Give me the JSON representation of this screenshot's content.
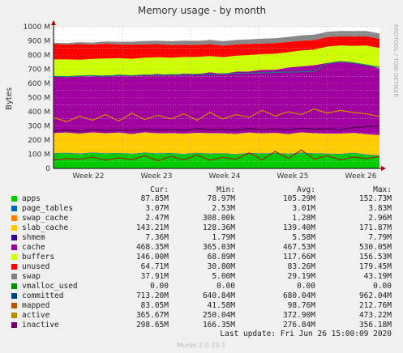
{
  "chart_data": {
    "type": "area",
    "title": "Memory usage - by month",
    "ylabel": "Bytes",
    "watermark": "RRDTOOL / TOBI OETIKER",
    "ylim": [
      0,
      1000
    ],
    "yticks": [
      "0",
      "100 M",
      "200 M",
      "300 M",
      "400 M",
      "500 M",
      "600 M",
      "700 M",
      "800 M",
      "900 M",
      "1000 M"
    ],
    "xticks": [
      "Week 22",
      "Week 23",
      "Week 24",
      "Week 25",
      "Week 26"
    ],
    "grid": true,
    "stack_order": [
      "apps",
      "page_tables",
      "swap_cache",
      "slab_cache",
      "cache",
      "buffers",
      "unused",
      "swap"
    ],
    "stacked_series": [
      {
        "name": "apps",
        "color": "#00cc00",
        "values": [
          105,
          108,
          102,
          110,
          104,
          107,
          101,
          109,
          103,
          106,
          100,
          108,
          102,
          105,
          99,
          107,
          103,
          106,
          101,
          109,
          104,
          102,
          100,
          108,
          95,
          88
        ]
      },
      {
        "name": "page_tables",
        "color": "#0066b3",
        "values": [
          3,
          3,
          3,
          3,
          3,
          3,
          3,
          3,
          3,
          3,
          3,
          3,
          3,
          3,
          3,
          3,
          3,
          3,
          3,
          3,
          3,
          3,
          3,
          3,
          3,
          3
        ]
      },
      {
        "name": "swap_cache",
        "color": "#ff8000",
        "values": [
          1,
          1,
          1,
          1,
          1,
          1,
          1,
          1,
          1,
          1,
          1,
          1,
          1,
          1,
          1,
          1,
          1,
          1,
          1,
          1,
          1,
          1,
          1,
          1,
          2,
          2
        ]
      },
      {
        "name": "slab_cache",
        "color": "#ffcc00",
        "values": [
          140,
          142,
          138,
          141,
          139,
          143,
          137,
          142,
          140,
          138,
          141,
          139,
          142,
          138,
          140,
          143,
          139,
          141,
          137,
          142,
          140,
          139,
          141,
          138,
          142,
          143
        ]
      },
      {
        "name": "cache",
        "color": "#a000a0",
        "values": [
          400,
          390,
          405,
          395,
          410,
          400,
          415,
          405,
          420,
          410,
          425,
          415,
          430,
          420,
          440,
          430,
          450,
          445,
          470,
          465,
          480,
          500,
          505,
          495,
          490,
          468
        ]
      },
      {
        "name": "buffers",
        "color": "#ccff00",
        "values": [
          120,
          125,
          118,
          122,
          119,
          124,
          117,
          121,
          118,
          123,
          116,
          120,
          115,
          118,
          112,
          116,
          110,
          114,
          108,
          112,
          110,
          115,
          118,
          120,
          135,
          146
        ]
      },
      {
        "name": "unused",
        "color": "#ff0000",
        "values": [
          110,
          105,
          112,
          102,
          104,
          98,
          100,
          95,
          92,
          90,
          88,
          86,
          84,
          82,
          80,
          78,
          76,
          74,
          72,
          70,
          68,
          66,
          64,
          66,
          65,
          65
        ]
      },
      {
        "name": "swap",
        "color": "#888888",
        "values": [
          8,
          10,
          12,
          14,
          16,
          18,
          20,
          22,
          24,
          26,
          28,
          28,
          30,
          30,
          32,
          32,
          34,
          34,
          36,
          36,
          38,
          38,
          38,
          38,
          38,
          38
        ]
      }
    ],
    "line_series": [
      {
        "name": "committed",
        "color": "#1a7a7a",
        "values": [
          650,
          648,
          652,
          655,
          650,
          658,
          654,
          660,
          657,
          662,
          660,
          665,
          662,
          668,
          670,
          672,
          675,
          678,
          680,
          682,
          685,
          740,
          755,
          745,
          730,
          713
        ]
      },
      {
        "name": "mapped",
        "color": "#993300",
        "values": [
          60,
          70,
          65,
          80,
          58,
          75,
          62,
          90,
          55,
          85,
          60,
          95,
          58,
          78,
          65,
          110,
          60,
          120,
          70,
          130,
          65,
          90,
          60,
          80,
          70,
          83
        ]
      },
      {
        "name": "active",
        "color": "#cc8800",
        "values": [
          360,
          330,
          370,
          340,
          380,
          335,
          390,
          345,
          375,
          350,
          385,
          340,
          395,
          350,
          380,
          360,
          410,
          370,
          400,
          380,
          420,
          390,
          410,
          395,
          385,
          366
        ]
      },
      {
        "name": "inactive",
        "color": "#4d004d",
        "values": [
          265,
          270,
          262,
          275,
          268,
          272,
          266,
          278,
          270,
          274,
          268,
          280,
          272,
          276,
          270,
          282,
          274,
          278,
          272,
          285,
          276,
          280,
          274,
          290,
          295,
          299
        ]
      }
    ]
  },
  "legend": {
    "headers": {
      "cur": "Cur:",
      "min": "Min:",
      "avg": "Avg:",
      "max": "Max:"
    },
    "rows": [
      {
        "name": "apps",
        "color": "#00cc00",
        "cur": "87.85M",
        "min": "78.97M",
        "avg": "105.29M",
        "max": "152.73M"
      },
      {
        "name": "page_tables",
        "color": "#0066b3",
        "cur": "3.07M",
        "min": "2.53M",
        "avg": "3.01M",
        "max": "3.83M"
      },
      {
        "name": "swap_cache",
        "color": "#ff8000",
        "cur": "2.47M",
        "min": "308.00k",
        "avg": "1.28M",
        "max": "2.96M"
      },
      {
        "name": "slab_cache",
        "color": "#ffcc00",
        "cur": "143.21M",
        "min": "128.36M",
        "avg": "139.40M",
        "max": "171.87M"
      },
      {
        "name": "shmem",
        "color": "#330099",
        "cur": "7.36M",
        "min": "1.79M",
        "avg": "5.58M",
        "max": "7.79M"
      },
      {
        "name": "cache",
        "color": "#990099",
        "cur": "468.35M",
        "min": "365.03M",
        "avg": "467.53M",
        "max": "530.05M"
      },
      {
        "name": "buffers",
        "color": "#ccff00",
        "cur": "146.00M",
        "min": "68.89M",
        "avg": "117.66M",
        "max": "156.53M"
      },
      {
        "name": "unused",
        "color": "#ff0000",
        "cur": "64.71M",
        "min": "30.80M",
        "avg": "83.26M",
        "max": "179.45M"
      },
      {
        "name": "swap",
        "color": "#808080",
        "cur": "37.91M",
        "min": "5.00M",
        "avg": "29.19M",
        "max": "43.19M"
      },
      {
        "name": "vmalloc_used",
        "color": "#008f00",
        "cur": "0.00",
        "min": "0.00",
        "avg": "0.00",
        "max": "0.00"
      },
      {
        "name": "committed",
        "color": "#00487d",
        "cur": "713.20M",
        "min": "640.84M",
        "avg": "680.04M",
        "max": "962.04M"
      },
      {
        "name": "mapped",
        "color": "#b35a00",
        "cur": "83.05M",
        "min": "41.58M",
        "avg": "98.76M",
        "max": "212.76M"
      },
      {
        "name": "active",
        "color": "#b38f00",
        "cur": "365.67M",
        "min": "250.04M",
        "avg": "372.90M",
        "max": "473.22M"
      },
      {
        "name": "inactive",
        "color": "#6b006b",
        "cur": "298.65M",
        "min": "166.35M",
        "avg": "276.84M",
        "max": "356.18M"
      }
    ]
  },
  "footer": {
    "last_update": "Last update:  Fri Jun 26 15:00:09 2020",
    "credit": "Munin 2.0.33-1"
  }
}
